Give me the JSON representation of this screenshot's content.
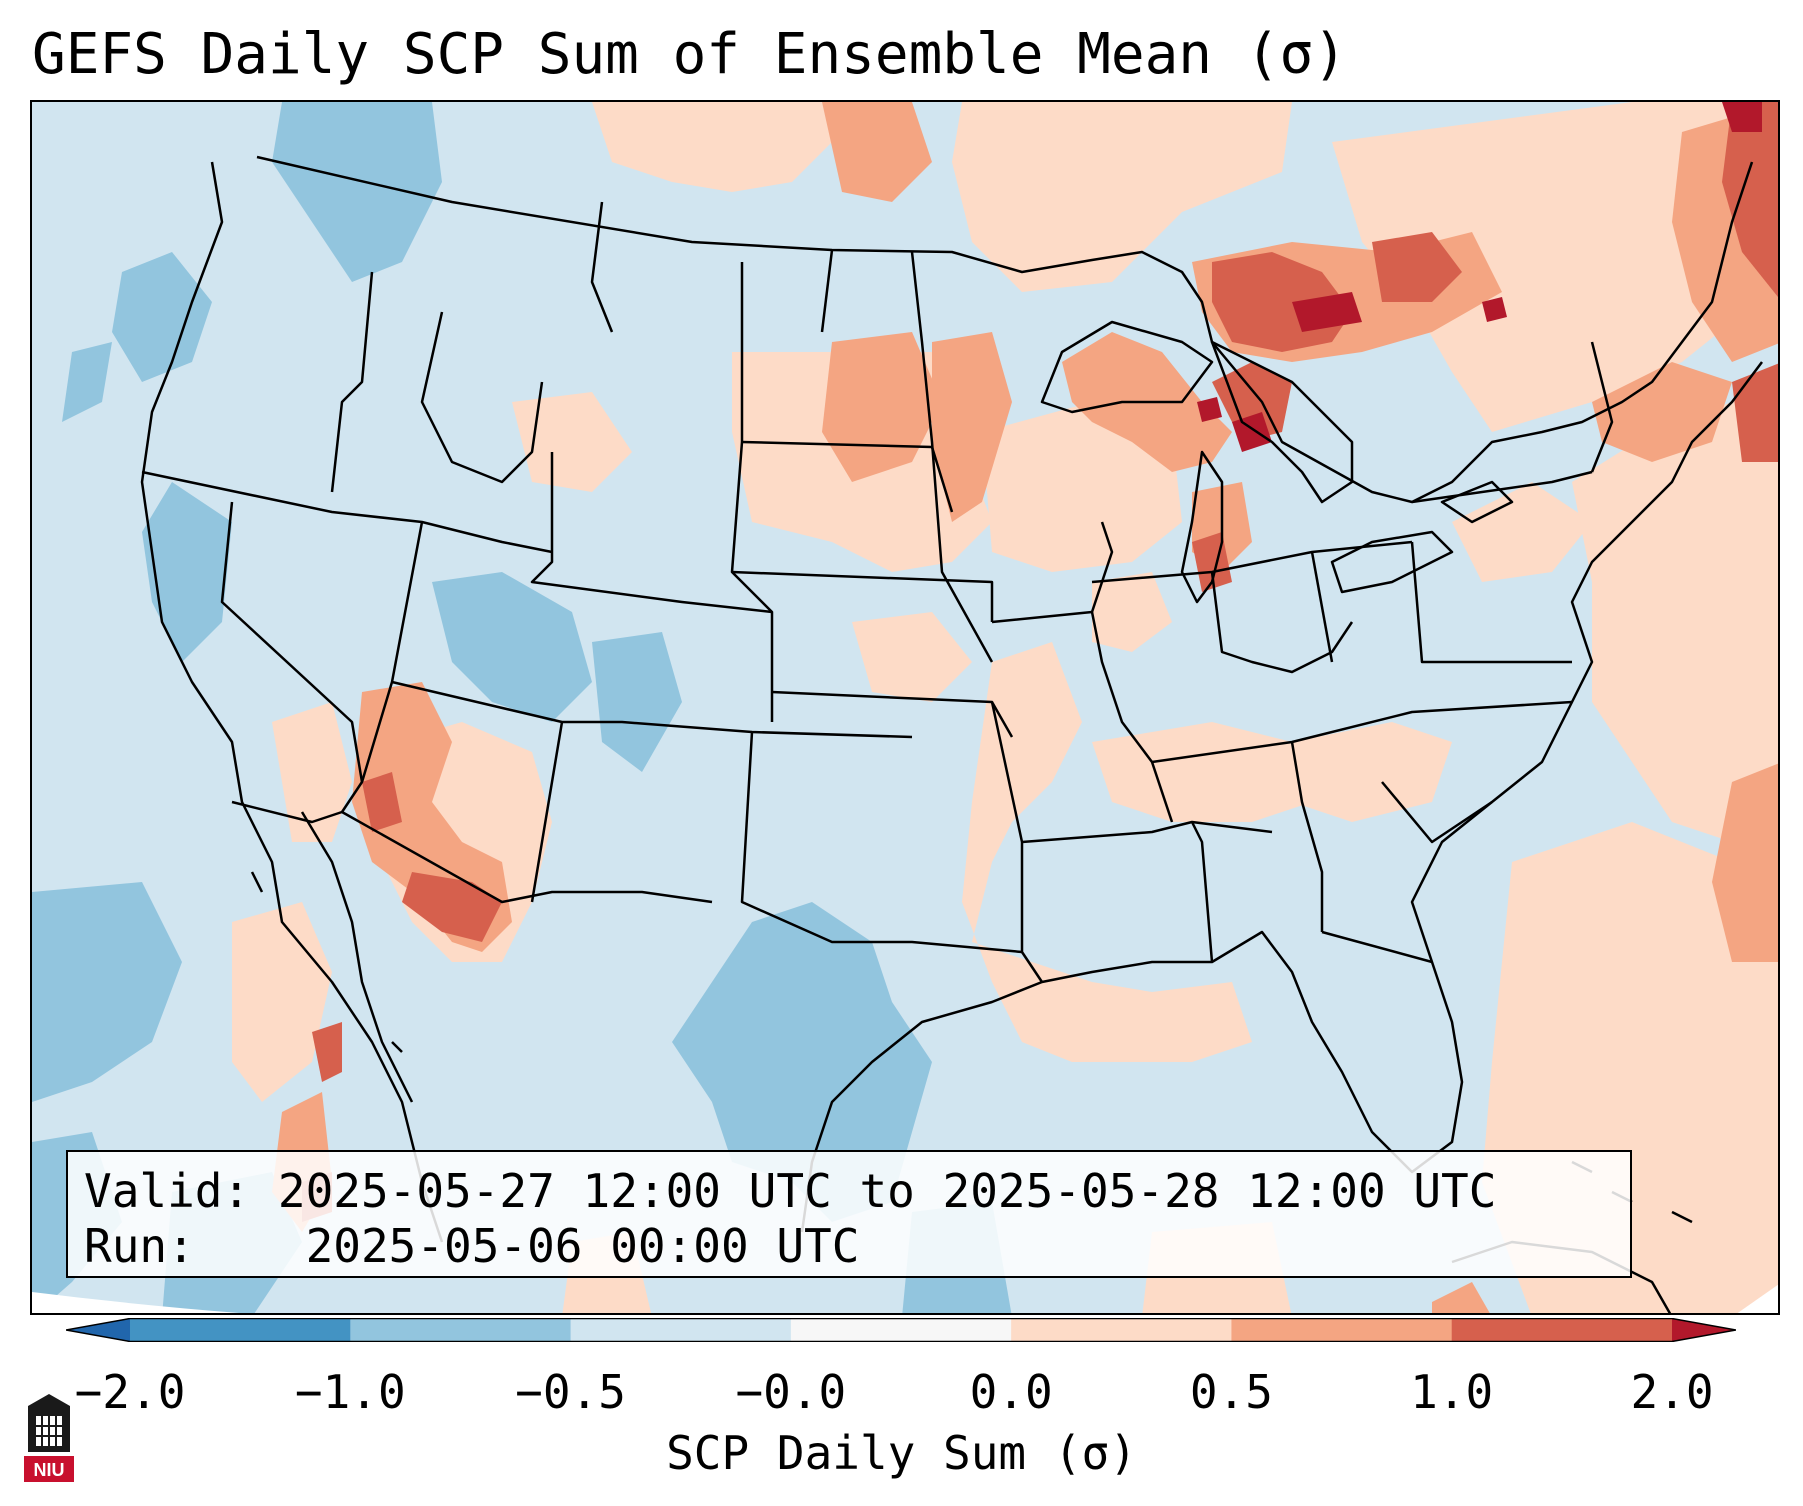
{
  "title": "GEFS Daily SCP Sum of Ensemble Mean (σ)",
  "info": {
    "valid_label": "Valid:",
    "valid_value": "2025-05-27 12:00 UTC to 2025-05-28 12:00 UTC",
    "run_label": "Run:",
    "run_value": "2025-05-06 00:00 UTC"
  },
  "colorbar": {
    "label": "SCP Daily Sum (σ)",
    "tick_labels": [
      "−2.0",
      "−1.0",
      "−0.5",
      "−0.0",
      "0.0",
      "0.5",
      "1.0",
      "2.0"
    ],
    "bins": [
      {
        "range": "< -2.0",
        "color": "#2166ac"
      },
      {
        "range": "-2.0 to -1.0",
        "color": "#4393c3"
      },
      {
        "range": "-1.0 to -0.5",
        "color": "#92c5de"
      },
      {
        "range": "-0.5 to -0.0",
        "color": "#d1e5f0"
      },
      {
        "range": "-0.0 to 0.0",
        "color": "#f7f7f7"
      },
      {
        "range": "0.0 to 0.5",
        "color": "#fddbc7"
      },
      {
        "range": "0.5 to 1.0",
        "color": "#f4a582"
      },
      {
        "range": "1.0 to 2.0",
        "color": "#d6604d"
      },
      {
        "range": "> 2.0",
        "color": "#b2182b"
      }
    ]
  },
  "logo": {
    "text": "NIU"
  }
}
